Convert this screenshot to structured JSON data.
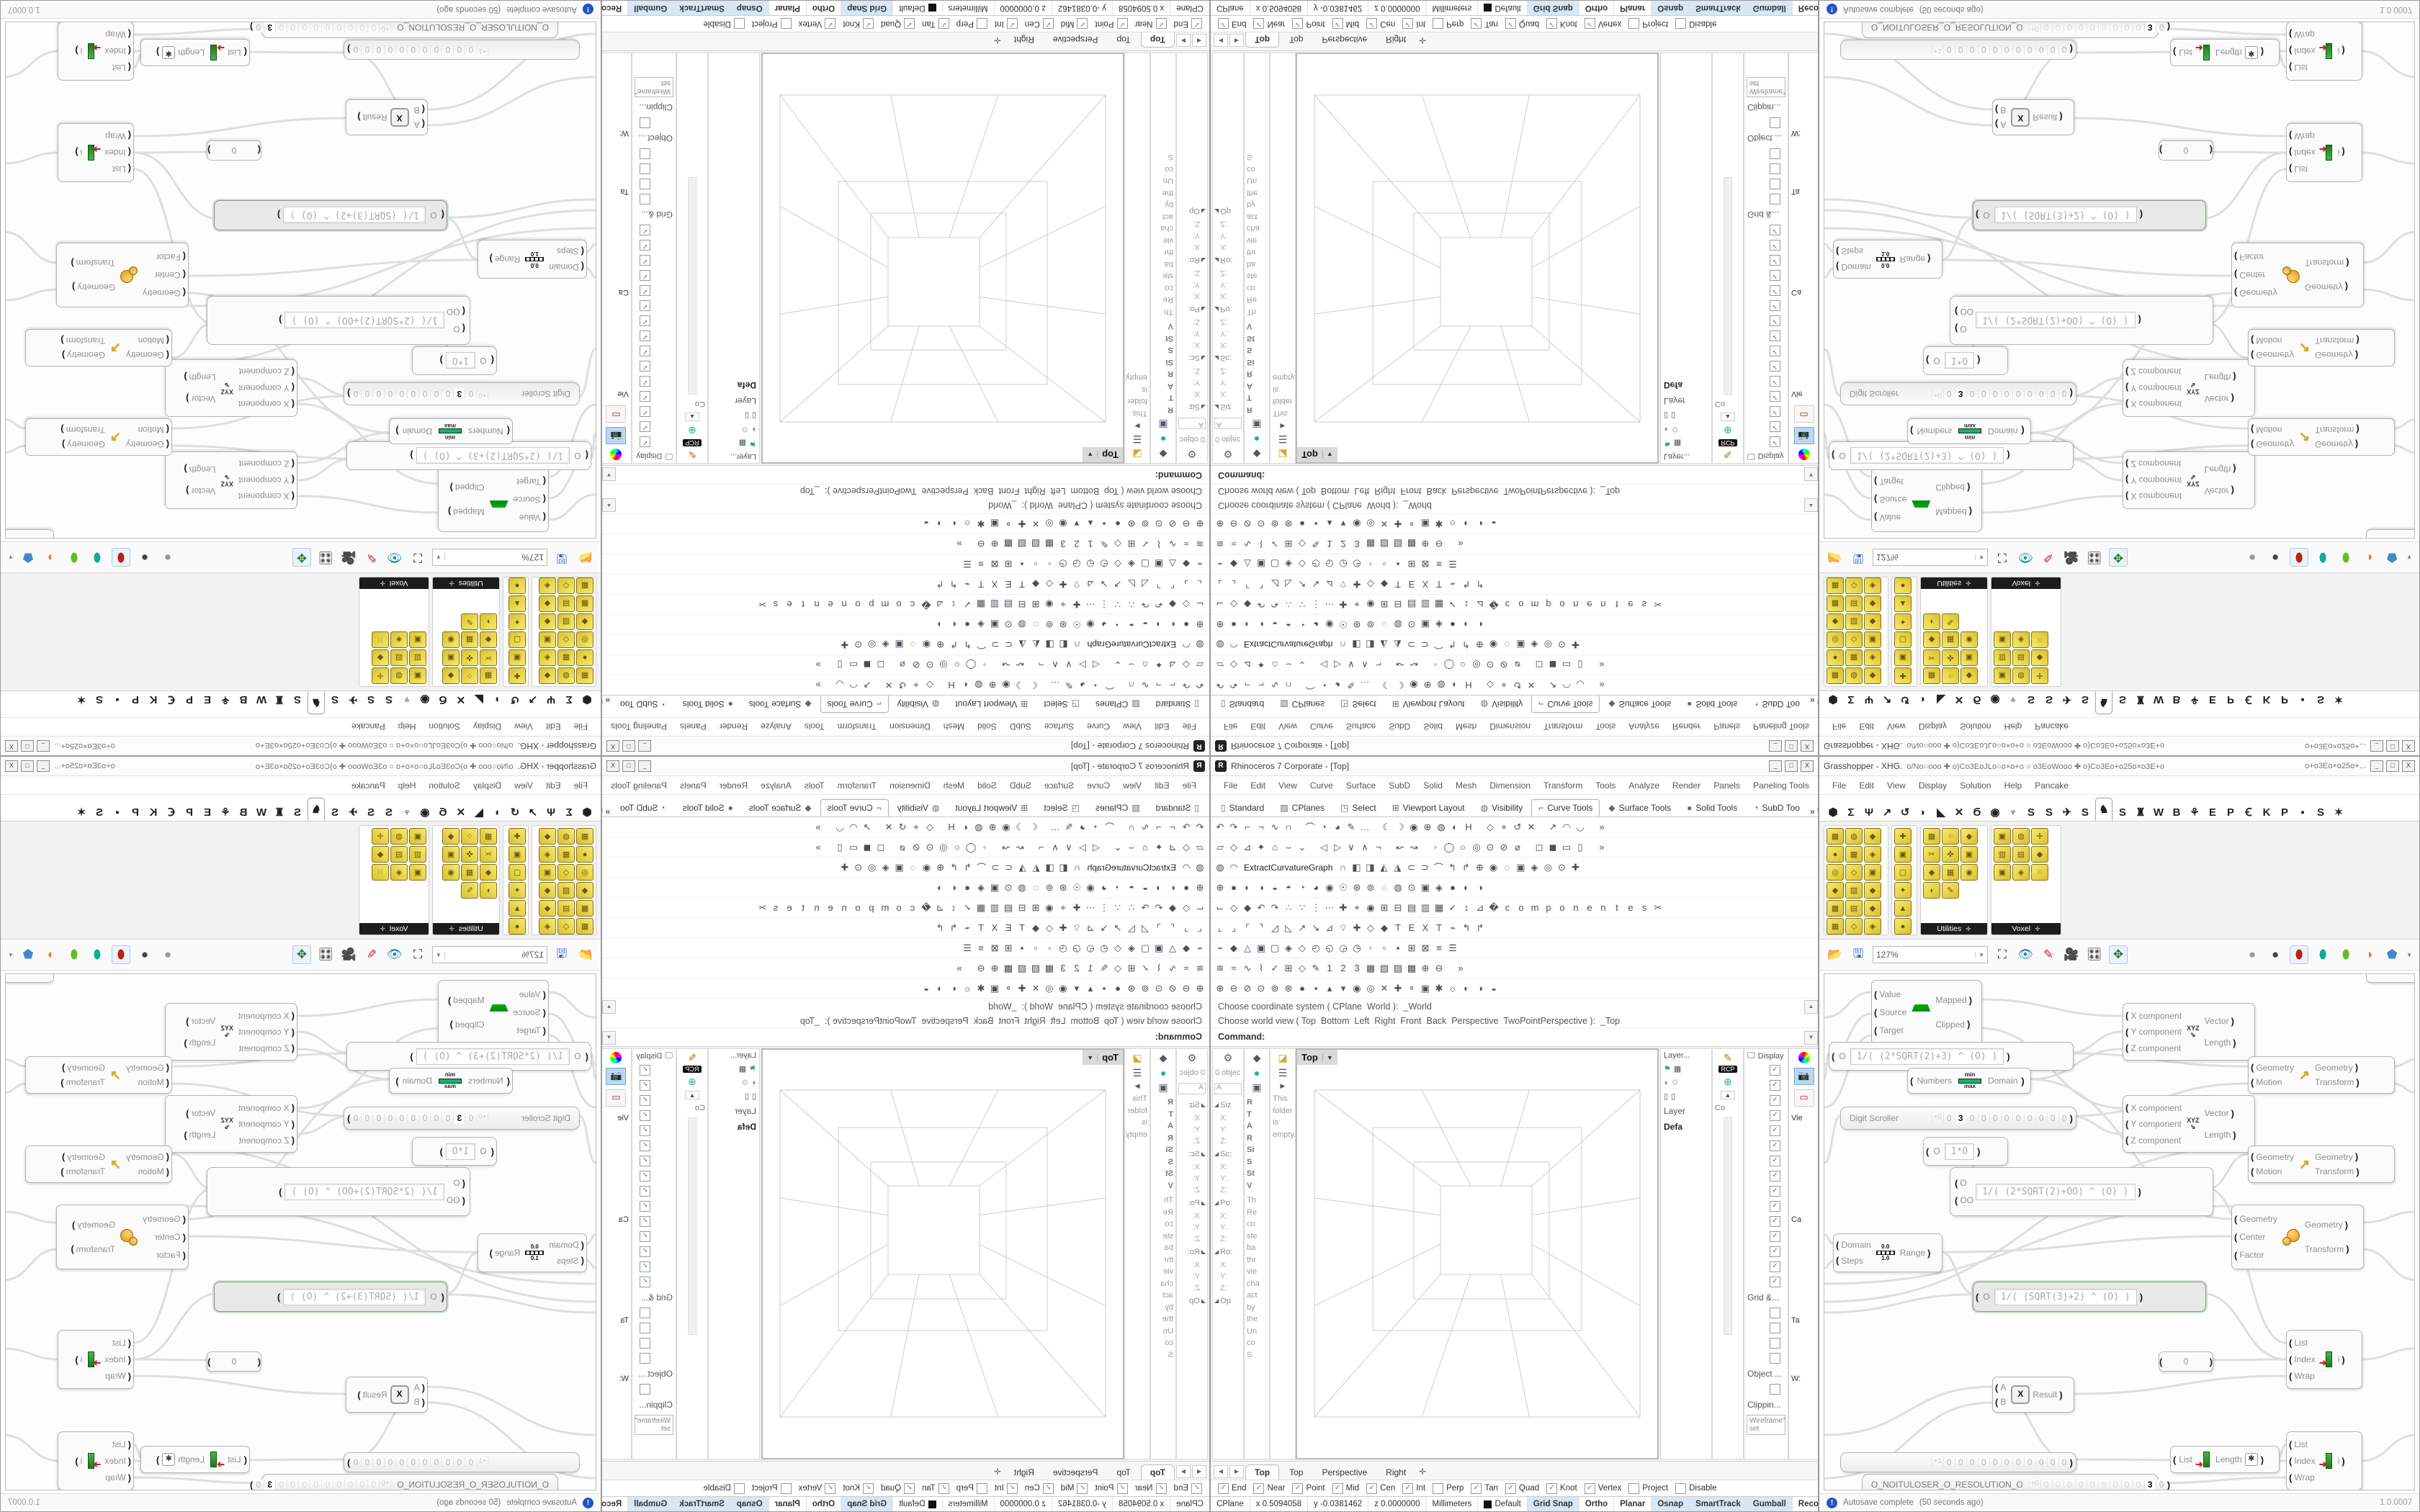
{
  "rhino": {
    "title": "Rhinoceros 7 Corporate - [Top]",
    "window_buttons": [
      "_",
      "□",
      "X"
    ],
    "menus": [
      "File",
      "Edit",
      "View",
      "Curve",
      "Surface",
      "SubD",
      "Solid",
      "Mesh",
      "Dimension",
      "Transform",
      "Tools",
      "Analyze",
      "Render",
      "Panels",
      "Paneling Tools",
      "Help"
    ],
    "tabs": [
      "Standard",
      "CPlanes",
      "Select",
      "Viewport Layout",
      "Visibility",
      "Curve Tools",
      "Surface Tools",
      "Solid Tools",
      "SubD Too"
    ],
    "tabs_active_index": 5,
    "tab_icons": [
      "▯",
      "▨",
      "◳",
      "⊞",
      "◍",
      "⌐",
      "◆",
      "●",
      "◔"
    ],
    "tab_overflow": "»",
    "toolbar_rows": [
      "↶↷⌐¬∿∩ ⌒◔◕✎… ☾☽◉⊕◍◐H ◇⌖↺✕ ↗◠◡ »",
      "▱◇⊿✦⌂⌣⌄ ◁▷∨∧¬ ↜↝ ◦◯○◎⊙⊘⌀ ◻◼▭▯ »",
      "∩◧◨◭◮⊂⊃⌒↰↱⊕◉◌▣◈◎⊙✚",
      "⊕●◐◑◒◓◔◕◉☉⊛⊚◌◍⊙▣◈●◐◑",
      "⌙◇◆↶↷∴∵⋮⋯✚⌖◉⊞⊟▤▥▦✓↕⊿�componentes✂",
      "⌞⌟⌜⌝◿◺↗↘⊿⌔✚◇◆TEXT⌁↰↱",
      "⌁◆△▣▢◈◇◴◵◶◷◦▫▪⊞⊠≡☰",
      "≋≈∿⌇✓⊞◇✎123▦▧▨▩⊕⊖ »",
      "⊕⊖⊘⊙⊚⊛●▪▴▾◉◎✕✚⚬▣✱☼◐◑◒"
    ],
    "extract_row_label": "ExtractCurvatureGraph",
    "extract_row_left_icons": "◍◠",
    "command": {
      "line1": "Choose coordinate system ( CPlane  World ):  _World",
      "line2": "Choose world view ( Top  Bottom  Left  Right  Front  Back  Perspective  TwoPointPerspective ):  _Top",
      "prompt": "Command:"
    },
    "left_panel": {
      "objects_label": "0 objec",
      "input_value": "A",
      "sections": [
        "Siz",
        "Sc:",
        "Po:",
        "Ro:",
        "Op"
      ],
      "xyz": [
        "X:",
        "Y:",
        "Z:"
      ],
      "help_lines": "R\nT\nA\nR\nSi\nS\nSt\nV",
      "help_para": "Th\nRe\nco\nste\nba\nthr\nvie\ncha\nact\nby\nthe\nUn\nco\nS",
      "folder_note": "This folder is empty."
    },
    "viewport": {
      "label": "Top"
    },
    "right_panel": {
      "layer_header": "Layer...",
      "layer_label": "Layer",
      "layer_value": "Defa",
      "rcp_label": "RCP",
      "co_label": "Co",
      "display_header": "Display",
      "checked_count": 15,
      "unchecked_count": 4,
      "grid_section": "Grid &...",
      "object_section": "Object ...",
      "clipping_section": "Clippin...",
      "wireframe_box": "Wireframe\" set",
      "side_labels": [
        "Vie",
        "Ca",
        "Ta",
        "W:"
      ]
    },
    "viewport_tabs": [
      "Top",
      "Top",
      "Perspective",
      "Right"
    ],
    "viewport_tabs_active_index": 0,
    "osnap": [
      {
        "label": "End",
        "on": true
      },
      {
        "label": "Near",
        "on": true
      },
      {
        "label": "Point",
        "on": true
      },
      {
        "label": "Mid",
        "on": true
      },
      {
        "label": "Cen",
        "on": true
      },
      {
        "label": "Int",
        "on": true
      },
      {
        "label": "Perp",
        "on": false
      },
      {
        "label": "Tan",
        "on": true
      },
      {
        "label": "Quad",
        "on": true
      },
      {
        "label": "Knot",
        "on": true
      },
      {
        "label": "Vertex",
        "on": true
      },
      {
        "label": "Project",
        "on": false
      },
      {
        "label": "Disable",
        "on": false
      }
    ],
    "status": {
      "cplane": "CPlane",
      "x": "x 0.5094058",
      "y": "y -0.0381462",
      "z": "z 0.0000000",
      "units": "Millimeters",
      "layer": "Default",
      "toggles": [
        {
          "label": "Grid Snap",
          "hl": true
        },
        {
          "label": "Ortho",
          "hl": false
        },
        {
          "label": "Planar",
          "hl": false
        },
        {
          "label": "Osnap",
          "hl": true
        },
        {
          "label": "SmartTrack",
          "hl": true
        },
        {
          "label": "Gumball",
          "hl": true
        },
        {
          "label": "Record History",
          "hl": false
        },
        {
          "label": "Filter",
          "hl": false
        }
      ]
    }
  },
  "grasshopper": {
    "title": "Grasshopper - XHG.",
    "title_glyphs": "o/No○ooo ✚ o)Co3EoJLo○o×o+o    ○    o3EoWooo ✚ o)Co3Eo+o25o×o3E+o",
    "title_glyphs_right": "o+o3Eo×o25o+...",
    "window_buttons": [
      "_",
      "□",
      "X"
    ],
    "menus": [
      "File",
      "Edit",
      "View",
      "Display",
      "Solution",
      "Help",
      "Pancake"
    ],
    "tab_icons": "⬢ΣΨ↗↺◗◣✕Ϭ◉♆SS✈S♞S♜WB⚘EPꞒKP▪S✶",
    "tab_active_index": 15,
    "palette_groups": [
      {
        "name": "Deform",
        "icons": "▦◍◆●▦◈◎◇▣◆▨◆▩▤◆▦◇◈"
      },
      {
        "name": "Refi...",
        "icons": "✚▣▢✦▲●"
      },
      {
        "name": "Utilities",
        "icons": "▦⁘◆✂✜▣◆▦◉◗✎"
      },
      {
        "name": "Voxel",
        "icons": "▣◍✛▥▤◆▣◈⁙"
      }
    ],
    "toolbar": {
      "zoom_value": "127%"
    },
    "nodes": {
      "gradient_in": [
        "Value",
        "Source",
        "Target"
      ],
      "gradient_out": [
        "Mapped",
        "Clipped"
      ],
      "expr1_in": "O",
      "expr1_text": "1/( (2*SQRT(2)+3) ^ (O) )",
      "bounds_in": "Numbers",
      "bounds_out": "Domain",
      "bounds_icon_top": "min",
      "bounds_icon_bot": "max",
      "scroller_label": "Digit Scroller",
      "scroller_cells": [
        "+0",
        "0",
        "3",
        "0",
        "0",
        "0",
        "0",
        "0",
        "0",
        "0",
        "0",
        "0"
      ],
      "scroller_hot_index": 2,
      "vector_in": [
        "X component",
        "Y component",
        "Z component"
      ],
      "vector_out": [
        "Vector",
        "Length"
      ],
      "vector_icon": "XYZ",
      "move_in": [
        "Geometry",
        "Motion"
      ],
      "move_out": [
        "Geometry",
        "Transform"
      ],
      "one_in": "O",
      "one_text": "1*O",
      "expr2_in": [
        "O",
        "OO"
      ],
      "expr2_text": "1/( (2*SQRT(2)+OO) ^ (O) )",
      "scale_in": [
        "Geometry",
        "Center",
        "Factor"
      ],
      "scale_out": [
        "Geometry",
        "Transform"
      ],
      "range_in": [
        "Domain",
        "Steps"
      ],
      "range_out": "Range",
      "range_icon_top": "0.0",
      "range_icon_bot": "1.0",
      "expr3_in": "O",
      "expr3_text": "1/( (SQRT(3)+2) ^ (O) )",
      "slider_small_value": "0",
      "mul_in": [
        "A",
        "B"
      ],
      "mul_out": "Result",
      "mul_icon": "X",
      "listlen_in": "List",
      "listlen_out": "Length",
      "listitem_in": [
        "List",
        "Index",
        "Wrap"
      ],
      "listitem_out": "i",
      "listitem_icon": "N",
      "slider1_cells": [
        "+1",
        "0",
        "0",
        "0",
        "0",
        "0",
        "0",
        "0",
        "0",
        "0",
        "0",
        "0"
      ],
      "slider2_label": "O_NOITULOSER_O_RESOLUTION_O",
      "slider2_cells": [
        "+0",
        "0",
        "0",
        "0",
        "0",
        "0",
        "0",
        "0",
        "0",
        "0",
        "3",
        "0"
      ],
      "slider2_hot_index": 10
    },
    "status": {
      "autosave": "Autosave complete",
      "autosave_time": "(50 seconds ago)",
      "version": "1.0.0007"
    }
  }
}
